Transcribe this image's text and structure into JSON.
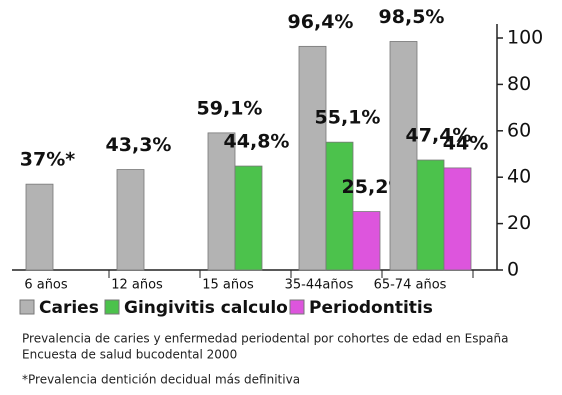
{
  "chart_data": {
    "type": "bar",
    "categories": [
      "6 años",
      "12 años",
      "15 años",
      "35-44años",
      "65-74 años"
    ],
    "series": [
      {
        "name": "Caries",
        "color": "#b3b3b3",
        "values": [
          37,
          43.3,
          59.1,
          96.4,
          98.5
        ],
        "value_labels": [
          "37%*",
          "43,3%",
          "59,1%",
          "96,4%",
          "98,5%"
        ]
      },
      {
        "name": "Gingivitis calculo",
        "color": "#4cc24c",
        "values": [
          null,
          null,
          44.8,
          55.1,
          47.4
        ],
        "value_labels": [
          null,
          null,
          "44,8%",
          "55,1%",
          "47,4%"
        ]
      },
      {
        "name": "Periodontitis",
        "color": "#dd55dd",
        "values": [
          null,
          null,
          null,
          25.2,
          44
        ],
        "value_labels": [
          null,
          null,
          null,
          "25,2%",
          "44%"
        ]
      }
    ],
    "ylim": [
      0,
      100
    ],
    "yticks": [
      0,
      20,
      40,
      60,
      80,
      100
    ],
    "y_axis_side": "right",
    "notes": [
      "Prevalencia de caries y enfermedad periodental por cohortes de edad en España",
      "Encuesta de salud bucodental 2000",
      "*Prevalencia dentición decidual más definitiva"
    ]
  }
}
